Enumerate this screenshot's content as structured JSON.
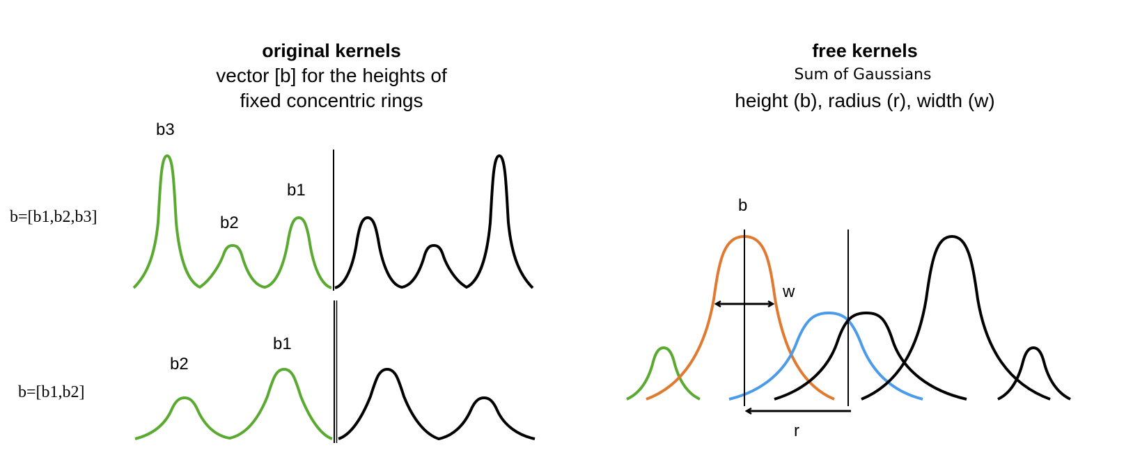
{
  "left_panel": {
    "title": "original kernels",
    "subtitle_line1": "vector [b] for the heights of",
    "subtitle_line2": "fixed concentric rings",
    "row1": {
      "vector_label": "b=[b1,b2,b3]",
      "peak_labels": [
        "b3",
        "b2",
        "b1"
      ]
    },
    "row2": {
      "vector_label": "b=[b1,b2]",
      "peak_labels": [
        "b2",
        "b1"
      ]
    }
  },
  "right_panel": {
    "title": "free kernels",
    "subtitle": "Sum of Gaussians",
    "params": "height (b), radius (r), width (w)",
    "height_label": "b",
    "width_label": "w",
    "radius_label": "r"
  },
  "colors": {
    "green": "#5aaa32",
    "orange": "#e07a30",
    "blue": "#4c9be8",
    "black": "#000000"
  }
}
